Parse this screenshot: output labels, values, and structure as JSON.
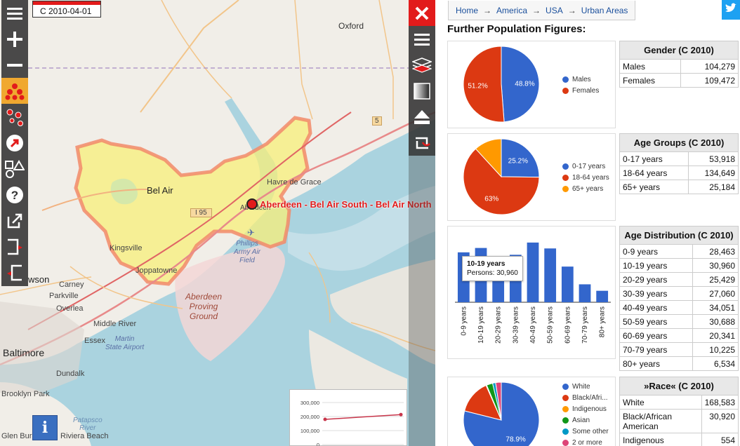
{
  "map": {
    "date_label": "C 2010-04-01",
    "place_label": "Aberdeen - Bel Air South - Bel Air North",
    "labels": {
      "oxford": "Oxford",
      "bel_air": "Bel Air",
      "havre_de_grace": "Havre de Grace",
      "aberdeen": "Aberdeen",
      "i95": "I 95",
      "kingsville": "Kingsville",
      "joppatowne": "Joppatowne",
      "phillips": "Phillips\nArmy Air\nField",
      "aberdeen_pg": "Aberdeen\nProving\nGround",
      "carney": "Carney",
      "parkville": "Parkville",
      "overlea": "Overlea",
      "middle_river": "Middle River",
      "essex": "Essex",
      "martin": "Martin\nState Airport",
      "baltimore": "Baltimore",
      "dundalk": "Dundalk",
      "brooklyn_park": "Brooklyn Park",
      "glen_burnie": "Glen Burnie",
      "riviera_beach": "Riviera Beach",
      "patapsco": "Patapsco\nRiver",
      "towson_partial": "wson",
      "route5": "5"
    },
    "info_label": "i",
    "mini_chart": {
      "ticks": [
        "300,000",
        "200,000",
        "100,000",
        "0"
      ]
    }
  },
  "left_toolbar": [
    {
      "name": "menu-icon"
    },
    {
      "name": "zoom-in-icon"
    },
    {
      "name": "zoom-out-icon"
    },
    {
      "name": "cluster-icon"
    },
    {
      "name": "points-icon"
    },
    {
      "name": "arrow-icon"
    },
    {
      "name": "shapes-icon"
    },
    {
      "name": "help-icon"
    },
    {
      "name": "export-icon"
    },
    {
      "name": "bracket-right-icon"
    },
    {
      "name": "bracket-left-icon"
    }
  ],
  "right_toolbar": [
    {
      "name": "close-icon"
    },
    {
      "name": "menu-icon"
    },
    {
      "name": "layers-icon"
    },
    {
      "name": "gradient-icon"
    },
    {
      "name": "eject-icon"
    },
    {
      "name": "refresh-icon"
    }
  ],
  "panel": {
    "breadcrumb": [
      "Home",
      "America",
      "USA",
      "Urban Areas"
    ],
    "title": "Further Population Figures:",
    "gender": {
      "title": "Gender (C 2010)",
      "rows": [
        {
          "label": "Males",
          "value": "104,279"
        },
        {
          "label": "Females",
          "value": "109,472"
        }
      ],
      "chart": {
        "type": "pie",
        "labels": [
          "Males",
          "Females"
        ],
        "values": [
          48.8,
          51.2
        ],
        "slice_labels": [
          "48.8%",
          "51.2%"
        ],
        "colors": [
          "#3366cc",
          "#dc3912"
        ]
      }
    },
    "age_groups": {
      "title": "Age Groups (C 2010)",
      "rows": [
        {
          "label": "0-17 years",
          "value": "53,918"
        },
        {
          "label": "18-64 years",
          "value": "134,649"
        },
        {
          "label": "65+ years",
          "value": "25,184"
        }
      ],
      "chart": {
        "type": "pie",
        "labels": [
          "0-17 years",
          "18-64 years",
          "65+ years"
        ],
        "values": [
          25.2,
          63,
          11.8
        ],
        "slice_labels": [
          "25.2%",
          "63%",
          ""
        ],
        "colors": [
          "#3366cc",
          "#dc3912",
          "#ff9900"
        ]
      }
    },
    "age_distribution": {
      "title": "Age Distribution (C 2010)",
      "rows": [
        {
          "label": "0-9 years",
          "value": "28,463"
        },
        {
          "label": "10-19 years",
          "value": "30,960"
        },
        {
          "label": "20-29 years",
          "value": "25,429"
        },
        {
          "label": "30-39 years",
          "value": "27,060"
        },
        {
          "label": "40-49 years",
          "value": "34,051"
        },
        {
          "label": "50-59 years",
          "value": "30,688"
        },
        {
          "label": "60-69 years",
          "value": "20,341"
        },
        {
          "label": "70-79 years",
          "value": "10,225"
        },
        {
          "label": "80+ years",
          "value": "6,534"
        }
      ],
      "tooltip": {
        "title": "10-19 years",
        "text": "Persons: 30,960"
      }
    },
    "race": {
      "title": "»Race« (C 2010)",
      "rows": [
        {
          "label": "White",
          "value": "168,583"
        },
        {
          "label": "Black/African American",
          "value": "30,920"
        },
        {
          "label": "Indigenous",
          "value": "554"
        }
      ],
      "chart": {
        "type": "pie",
        "labels": [
          "White",
          "Black/Afri...",
          "Indigenous",
          "Asian",
          "Some other",
          "2 or more"
        ],
        "values": [
          78.9,
          14.5,
          0.3,
          2.6,
          1.3,
          2.4
        ],
        "slice_labels": [
          "78.9%",
          "",
          "",
          "",
          "",
          ""
        ],
        "colors": [
          "#3366cc",
          "#dc3912",
          "#ff9900",
          "#109618",
          "#0099c6",
          "#dd4477"
        ]
      }
    }
  },
  "chart_data": [
    {
      "type": "pie",
      "title": "",
      "labels": [
        "Males",
        "Females"
      ],
      "values": [
        48.8,
        51.2
      ]
    },
    {
      "type": "pie",
      "title": "",
      "labels": [
        "0-17 years",
        "18-64 years",
        "65+ years"
      ],
      "values": [
        25.2,
        63,
        11.8
      ]
    },
    {
      "type": "bar",
      "title": "",
      "categories": [
        "0-9 years",
        "10-19 years",
        "20-29 years",
        "30-39 years",
        "40-49 years",
        "50-59 years",
        "60-69 years",
        "70-79 years",
        "80+ years"
      ],
      "values": [
        28463,
        30960,
        25429,
        27060,
        34051,
        30688,
        20341,
        10225,
        6534
      ],
      "ylim": [
        0,
        36000
      ]
    },
    {
      "type": "pie",
      "title": "",
      "labels": [
        "White",
        "Black/Afri...",
        "Indigenous",
        "Asian",
        "Some other",
        "2 or more"
      ],
      "values": [
        78.9,
        14.5,
        0.3,
        2.6,
        1.3,
        2.4
      ]
    },
    {
      "type": "line",
      "title": "",
      "y_ticks": [
        0,
        100000,
        200000,
        300000
      ],
      "values": [
        180000,
        214000
      ],
      "ylim": [
        0,
        300000
      ]
    }
  ]
}
